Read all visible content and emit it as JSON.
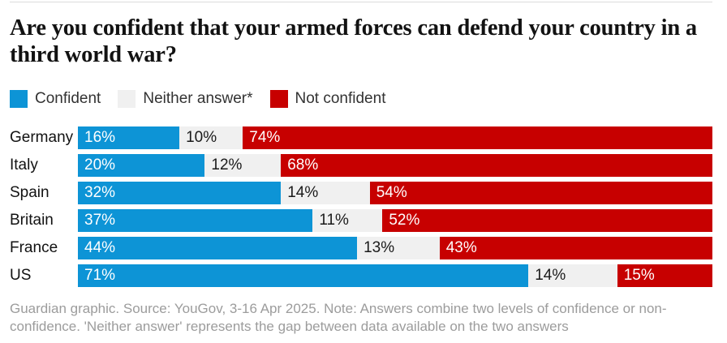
{
  "header": {
    "title": "Are you confident that your armed forces can defend your country in a third world war?"
  },
  "chart_data": {
    "type": "bar",
    "orientation": "horizontal",
    "stacked": true,
    "title": "Are you confident that your armed forces can defend your country in a third world war?",
    "categories": [
      "Germany",
      "Italy",
      "Spain",
      "Britain",
      "France",
      "US"
    ],
    "series": [
      {
        "name": "Confident",
        "color": "#0d94d6",
        "label_color": "#ffffff",
        "values": [
          16,
          20,
          32,
          37,
          44,
          71
        ]
      },
      {
        "name": "Neither answer*",
        "color": "#f0f0f0",
        "label_color": "#1a1a1a",
        "values": [
          10,
          12,
          14,
          11,
          13,
          14
        ]
      },
      {
        "name": "Not confident",
        "color": "#c70000",
        "label_color": "#ffffff",
        "values": [
          74,
          68,
          54,
          52,
          43,
          15
        ]
      }
    ],
    "value_suffix": "%",
    "xlim": [
      0,
      100
    ],
    "data_labels": "inside-start",
    "legend_position": "top",
    "grid": false
  },
  "footer": {
    "text": "Guardian graphic. Source: YouGov, 3-16 Apr 2025. Note: Answers combine two levels of confidence or non-confidence. 'Neither answer' represents the gap between data available on the two answers"
  },
  "colors": {
    "confident": "#0d94d6",
    "neither": "#f0f0f0",
    "not_confident": "#c70000",
    "title_text": "#121212",
    "footer_text": "#9c9c9c",
    "rule": "#dcdcdc"
  }
}
